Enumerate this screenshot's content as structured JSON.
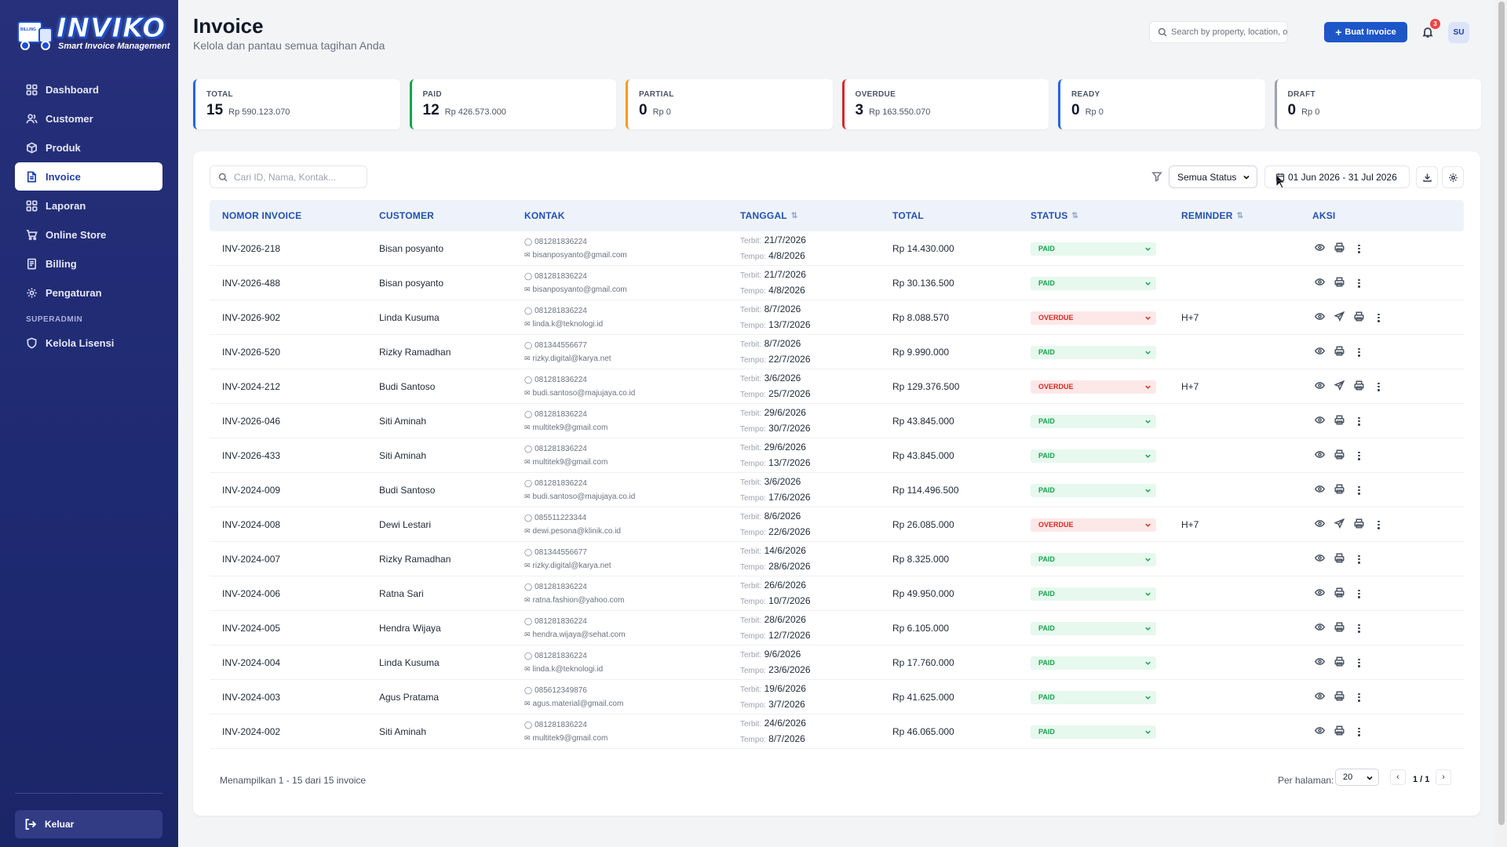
{
  "app": {
    "logo_text": "INVIKO",
    "logo_subtitle": "Smart Invoice Management",
    "logo_stamp": "BILLING"
  },
  "sidebar": {
    "items": [
      {
        "label": "Dashboard",
        "icon": "grid-icon"
      },
      {
        "label": "Customer",
        "icon": "users-icon"
      },
      {
        "label": "Produk",
        "icon": "box-icon"
      },
      {
        "label": "Invoice",
        "icon": "file-icon",
        "active": true
      },
      {
        "label": "Laporan",
        "icon": "chart-grid-icon"
      },
      {
        "label": "Online Store",
        "icon": "cart-icon"
      },
      {
        "label": "Billing",
        "icon": "receipt-icon"
      },
      {
        "label": "Pengaturan",
        "icon": "gear-icon"
      }
    ],
    "section_label": "SUPERADMIN",
    "section_items": [
      {
        "label": "Kelola Lisensi",
        "icon": "shield-icon"
      }
    ],
    "logout_label": "Keluar"
  },
  "header": {
    "title": "Invoice",
    "subtitle": "Kelola dan pantau semua tagihan Anda",
    "search_placeholder": "Search by property, location, or client",
    "create_button": "Buat Invoice",
    "notification_count": "3",
    "avatar_initials": "SU"
  },
  "stats": [
    {
      "label": "TOTAL",
      "count": "15",
      "amount": "Rp 590.123.070",
      "color": "#2563eb"
    },
    {
      "label": "PAID",
      "count": "12",
      "amount": "Rp 426.573.000",
      "color": "#16a34a"
    },
    {
      "label": "PARTIAL",
      "count": "0",
      "amount": "Rp 0",
      "color": "#f59e0b"
    },
    {
      "label": "OVERDUE",
      "count": "3",
      "amount": "Rp 163.550.070",
      "color": "#dc2626"
    },
    {
      "label": "READY",
      "count": "0",
      "amount": "Rp 0",
      "color": "#2563eb"
    },
    {
      "label": "DRAFT",
      "count": "0",
      "amount": "Rp 0",
      "color": "#9ca3af"
    }
  ],
  "toolbar": {
    "search_placeholder": "Cari ID, Nama, Kontak...",
    "status_filter": "Semua Status",
    "date_range": "01 Jun 2026 - 31 Jul 2026"
  },
  "table": {
    "columns": [
      "NOMOR INVOICE",
      "CUSTOMER",
      "KONTAK",
      "TANGGAL",
      "TOTAL",
      "STATUS",
      "REMINDER",
      "AKSI"
    ],
    "issued_label": "Terbit:",
    "due_label": "Tempo:",
    "rows": [
      {
        "id": "INV-2026-218",
        "customer": "Bisan posyanto",
        "phone": "081281836224",
        "email": "bisanposyanto@gmail.com",
        "issued": "21/7/2026",
        "due": "4/8/2026",
        "total": "Rp 14.430.000",
        "status": "PAID",
        "reminder": ""
      },
      {
        "id": "INV-2026-488",
        "customer": "Bisan posyanto",
        "phone": "081281836224",
        "email": "bisanposyanto@gmail.com",
        "issued": "21/7/2026",
        "due": "4/8/2026",
        "total": "Rp 30.136.500",
        "status": "PAID",
        "reminder": ""
      },
      {
        "id": "INV-2026-902",
        "customer": "Linda Kusuma",
        "phone": "081281836224",
        "email": "linda.k@teknologi.id",
        "issued": "8/7/2026",
        "due": "13/7/2026",
        "total": "Rp 8.088.570",
        "status": "OVERDUE",
        "reminder": "H+7"
      },
      {
        "id": "INV-2026-520",
        "customer": "Rizky Ramadhan",
        "phone": "081344556677",
        "email": "rizky.digital@karya.net",
        "issued": "8/7/2026",
        "due": "22/7/2026",
        "total": "Rp 9.990.000",
        "status": "PAID",
        "reminder": ""
      },
      {
        "id": "INV-2024-212",
        "customer": "Budi Santoso",
        "phone": "081281836224",
        "email": "budi.santoso@majujaya.co.id",
        "issued": "3/6/2026",
        "due": "25/7/2026",
        "total": "Rp 129.376.500",
        "status": "OVERDUE",
        "reminder": "H+7"
      },
      {
        "id": "INV-2026-046",
        "customer": "Siti Aminah",
        "phone": "081281836224",
        "email": "multitek9@gmail.com",
        "issued": "29/6/2026",
        "due": "30/7/2026",
        "total": "Rp 43.845.000",
        "status": "PAID",
        "reminder": ""
      },
      {
        "id": "INV-2026-433",
        "customer": "Siti Aminah",
        "phone": "081281836224",
        "email": "multitek9@gmail.com",
        "issued": "29/6/2026",
        "due": "13/7/2026",
        "total": "Rp 43.845.000",
        "status": "PAID",
        "reminder": ""
      },
      {
        "id": "INV-2024-009",
        "customer": "Budi Santoso",
        "phone": "081281836224",
        "email": "budi.santoso@majujaya.co.id",
        "issued": "3/6/2026",
        "due": "17/6/2026",
        "total": "Rp 114.496.500",
        "status": "PAID",
        "reminder": ""
      },
      {
        "id": "INV-2024-008",
        "customer": "Dewi Lestari",
        "phone": "085511223344",
        "email": "dewi.pesona@klinik.co.id",
        "issued": "8/6/2026",
        "due": "22/6/2026",
        "total": "Rp 26.085.000",
        "status": "OVERDUE",
        "reminder": "H+7"
      },
      {
        "id": "INV-2024-007",
        "customer": "Rizky Ramadhan",
        "phone": "081344556677",
        "email": "rizky.digital@karya.net",
        "issued": "14/6/2026",
        "due": "28/6/2026",
        "total": "Rp 8.325.000",
        "status": "PAID",
        "reminder": ""
      },
      {
        "id": "INV-2024-006",
        "customer": "Ratna Sari",
        "phone": "081281836224",
        "email": "ratna.fashion@yahoo.com",
        "issued": "26/6/2026",
        "due": "10/7/2026",
        "total": "Rp 49.950.000",
        "status": "PAID",
        "reminder": ""
      },
      {
        "id": "INV-2024-005",
        "customer": "Hendra Wijaya",
        "phone": "081281836224",
        "email": "hendra.wijaya@sehat.com",
        "issued": "28/6/2026",
        "due": "12/7/2026",
        "total": "Rp 6.105.000",
        "status": "PAID",
        "reminder": ""
      },
      {
        "id": "INV-2024-004",
        "customer": "Linda Kusuma",
        "phone": "081281836224",
        "email": "linda.k@teknologi.id",
        "issued": "9/6/2026",
        "due": "23/6/2026",
        "total": "Rp 17.760.000",
        "status": "PAID",
        "reminder": ""
      },
      {
        "id": "INV-2024-003",
        "customer": "Agus Pratama",
        "phone": "085612349876",
        "email": "agus.material@gmail.com",
        "issued": "19/6/2026",
        "due": "3/7/2026",
        "total": "Rp 41.625.000",
        "status": "PAID",
        "reminder": ""
      },
      {
        "id": "INV-2024-002",
        "customer": "Siti Aminah",
        "phone": "081281836224",
        "email": "multitek9@gmail.com",
        "issued": "24/6/2026",
        "due": "8/7/2026",
        "total": "Rp 46.065.000",
        "status": "PAID",
        "reminder": ""
      }
    ]
  },
  "footer": {
    "summary": "Menampilkan 1 - 15 dari 15 invoice",
    "per_page_label": "Per halaman:",
    "per_page_value": "20",
    "page_info": "1 / 1"
  }
}
